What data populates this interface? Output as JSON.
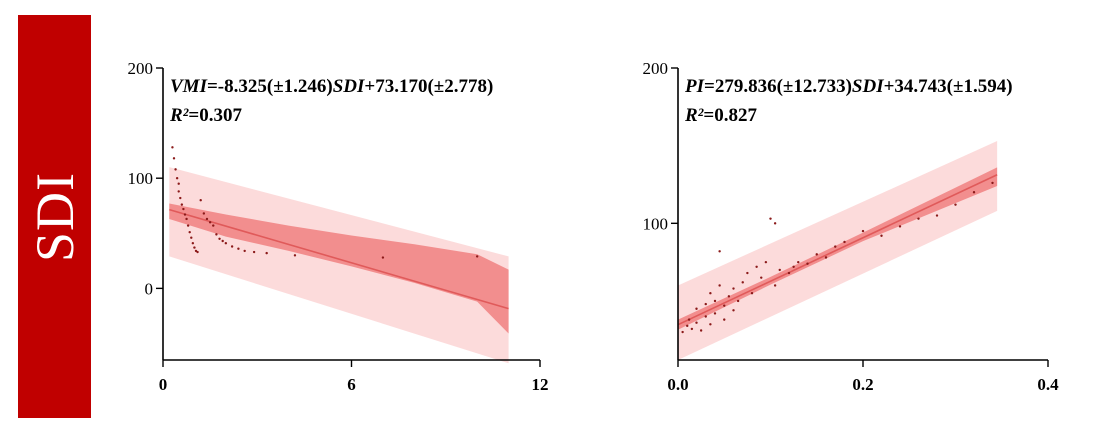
{
  "side_label": "SDI",
  "colors": {
    "band": "#c00000",
    "ci": "#f08080",
    "pi": "#fbd5d5",
    "line": "#e05a5a",
    "point": "#8b1a1a"
  },
  "chart_data": [
    {
      "type": "scatter",
      "equation": {
        "lhs": "VMI",
        "part1": "=-8.325(±1.246)",
        "var": "SDI",
        "part2": "+73.170(±2.778)",
        "r2_label": "R²",
        "r2_value": "=0.307"
      },
      "xlim": [
        0,
        12
      ],
      "ylim": [
        -65,
        200
      ],
      "xticks": [
        0,
        6,
        12
      ],
      "yticks": [
        0,
        100,
        200
      ],
      "fit": {
        "slope": -8.325,
        "intercept": 73.17
      },
      "confidence_band": [
        [
          0.2,
          63,
          77
        ],
        [
          2,
          47,
          67
        ],
        [
          4,
          34,
          57
        ],
        [
          6,
          20,
          48
        ],
        [
          8,
          5,
          40
        ],
        [
          10,
          -12,
          31
        ],
        [
          11,
          -41,
          17
        ]
      ],
      "prediction_band": [
        [
          0.2,
          29,
          110
        ],
        [
          11,
          -68,
          29
        ]
      ],
      "points": [
        [
          0.3,
          128
        ],
        [
          0.35,
          118
        ],
        [
          0.4,
          108
        ],
        [
          0.45,
          100
        ],
        [
          0.5,
          95
        ],
        [
          0.5,
          88
        ],
        [
          0.55,
          82
        ],
        [
          0.6,
          76
        ],
        [
          0.65,
          72
        ],
        [
          0.7,
          67
        ],
        [
          0.75,
          63
        ],
        [
          0.8,
          57
        ],
        [
          0.85,
          51
        ],
        [
          0.9,
          46
        ],
        [
          0.95,
          41
        ],
        [
          1.0,
          37
        ],
        [
          1.05,
          34
        ],
        [
          1.1,
          33
        ],
        [
          1.2,
          80
        ],
        [
          1.3,
          68
        ],
        [
          1.4,
          63
        ],
        [
          1.5,
          60
        ],
        [
          1.6,
          57
        ],
        [
          1.7,
          49
        ],
        [
          1.8,
          45
        ],
        [
          1.9,
          43
        ],
        [
          2.0,
          41
        ],
        [
          2.2,
          38
        ],
        [
          2.4,
          36
        ],
        [
          2.6,
          34
        ],
        [
          2.9,
          33
        ],
        [
          3.3,
          32
        ],
        [
          4.2,
          30
        ],
        [
          7.0,
          28
        ],
        [
          10.0,
          29
        ]
      ]
    },
    {
      "type": "scatter",
      "equation": {
        "lhs": "PI",
        "part1": "=279.836(±12.733)",
        "var": "SDI",
        "part2": "+34.743(±1.594)",
        "r2_label": "R²",
        "r2_value": "=0.827"
      },
      "xlim": [
        0,
        0.4
      ],
      "ylim": [
        12,
        200
      ],
      "xticks": [
        "0.0",
        "0.2",
        "0.4"
      ],
      "yticks": [
        100,
        200
      ],
      "fit": {
        "slope": 279.836,
        "intercept": 34.743
      },
      "confidence_band": [
        [
          0,
          31.5,
          38
        ],
        [
          0.1,
          60.5,
          65.5
        ],
        [
          0.2,
          88.5,
          94
        ],
        [
          0.345,
          124,
          136
        ]
      ],
      "prediction_band": [
        [
          0,
          12,
          60
        ],
        [
          0.345,
          108,
          153
        ]
      ],
      "points": [
        [
          0.005,
          30
        ],
        [
          0.01,
          34
        ],
        [
          0.012,
          38
        ],
        [
          0.015,
          32
        ],
        [
          0.02,
          36
        ],
        [
          0.02,
          45
        ],
        [
          0.025,
          31
        ],
        [
          0.03,
          40
        ],
        [
          0.03,
          48
        ],
        [
          0.035,
          35
        ],
        [
          0.035,
          55
        ],
        [
          0.04,
          42
        ],
        [
          0.04,
          50
        ],
        [
          0.045,
          60
        ],
        [
          0.045,
          82
        ],
        [
          0.05,
          38
        ],
        [
          0.05,
          47
        ],
        [
          0.055,
          53
        ],
        [
          0.06,
          44
        ],
        [
          0.06,
          58
        ],
        [
          0.065,
          50
        ],
        [
          0.07,
          62
        ],
        [
          0.075,
          68
        ],
        [
          0.08,
          55
        ],
        [
          0.085,
          72
        ],
        [
          0.09,
          65
        ],
        [
          0.095,
          75
        ],
        [
          0.1,
          103
        ],
        [
          0.105,
          100
        ],
        [
          0.105,
          60
        ],
        [
          0.11,
          70
        ],
        [
          0.12,
          68
        ],
        [
          0.125,
          72
        ],
        [
          0.13,
          75
        ],
        [
          0.14,
          74
        ],
        [
          0.15,
          80
        ],
        [
          0.16,
          78
        ],
        [
          0.17,
          85
        ],
        [
          0.18,
          88
        ],
        [
          0.2,
          95
        ],
        [
          0.22,
          92
        ],
        [
          0.24,
          98
        ],
        [
          0.26,
          103
        ],
        [
          0.28,
          105
        ],
        [
          0.3,
          112
        ],
        [
          0.32,
          120
        ],
        [
          0.34,
          126
        ]
      ]
    }
  ]
}
